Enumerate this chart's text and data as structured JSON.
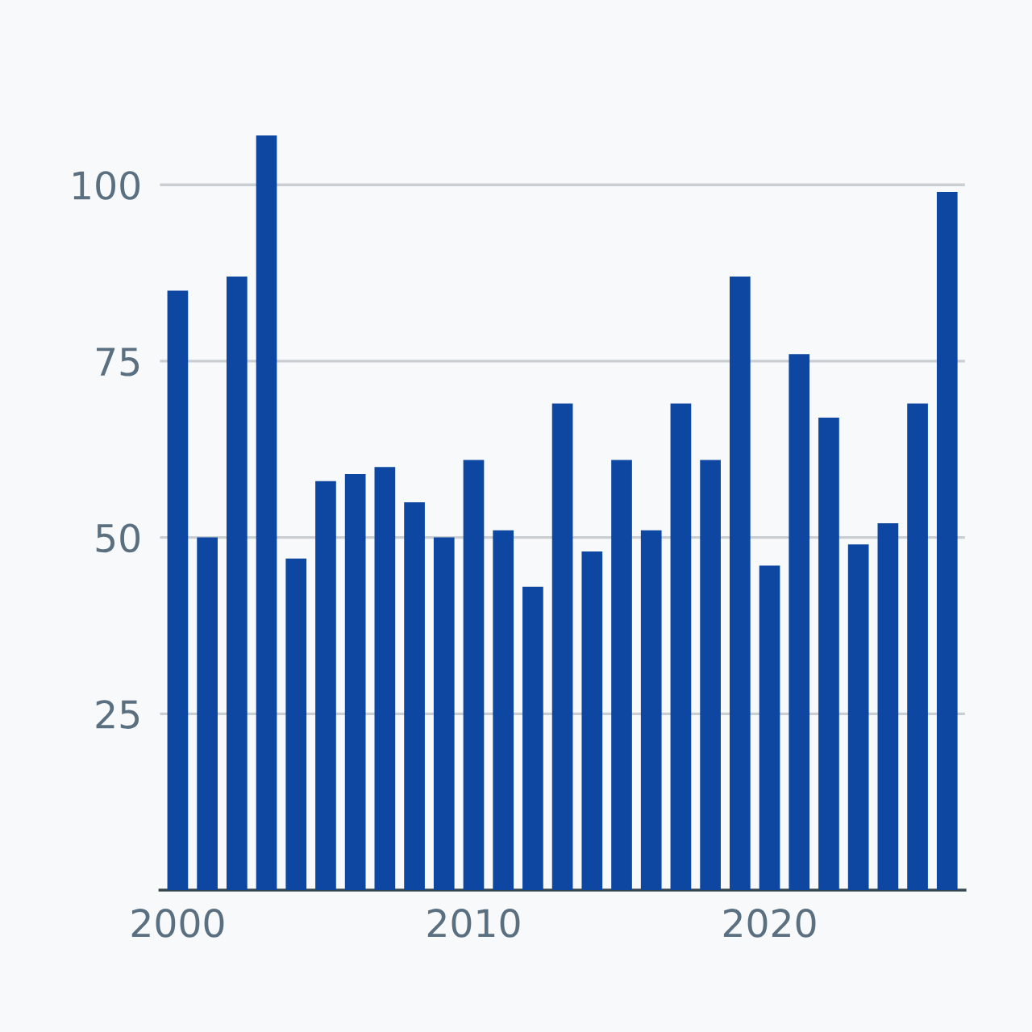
{
  "chart_data": {
    "type": "bar",
    "x": [
      2000,
      2001,
      2002,
      2003,
      2004,
      2005,
      2006,
      2007,
      2008,
      2009,
      2010,
      2011,
      2012,
      2013,
      2014,
      2015,
      2016,
      2017,
      2018,
      2019,
      2020,
      2021,
      2022,
      2023,
      2024,
      2025,
      2026
    ],
    "values": [
      85,
      50,
      87,
      107,
      47,
      58,
      59,
      60,
      55,
      50,
      61,
      51,
      43,
      69,
      48,
      61,
      51,
      69,
      61,
      87,
      46,
      76,
      67,
      49,
      52,
      69,
      99
    ],
    "color": "#0d47a1",
    "xlim": [
      1999.4,
      2026.6
    ],
    "xticks": [
      2000,
      2010,
      2020
    ],
    "ylim": [
      0,
      107
    ],
    "yticks": [
      25,
      50,
      75,
      100
    ],
    "grid": "y",
    "legend": false
  }
}
